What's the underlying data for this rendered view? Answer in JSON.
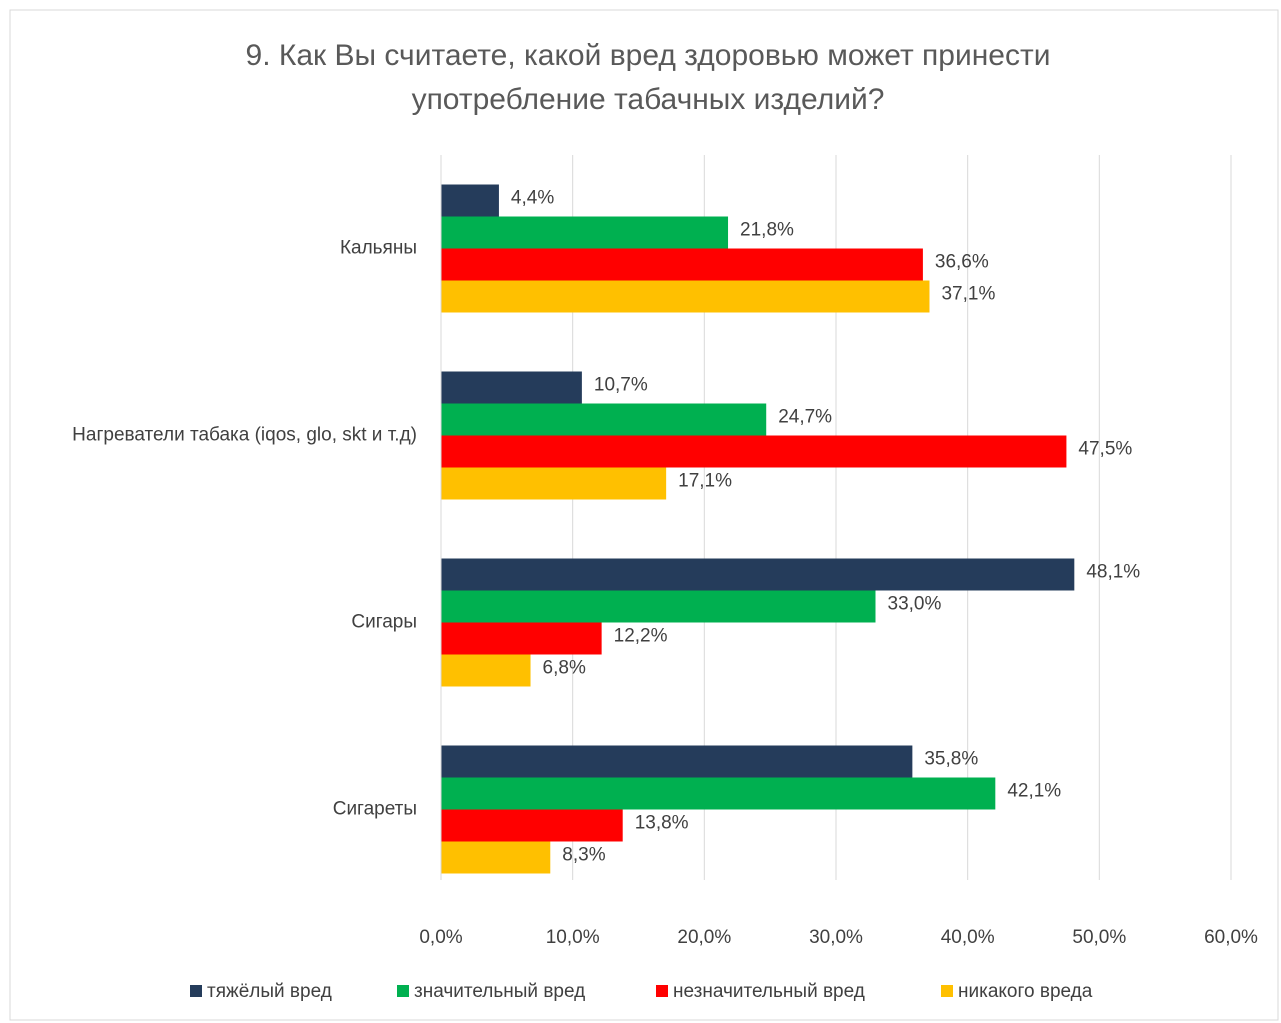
{
  "chart_data": {
    "type": "hbar",
    "title": [
      "9. Как Вы считаете, какой вред здоровью может принести",
      "употребление  табачных изделий?"
    ],
    "categories": [
      "Кальяны",
      "Нагреватели табака (iqos, glo, skt и т.д)",
      "Сигары",
      "Сигареты"
    ],
    "series": [
      {
        "name": "тяжёлый вред",
        "color": "#253c5b",
        "values": [
          4.4,
          10.7,
          48.1,
          35.8
        ],
        "value_labels": [
          "4,4%",
          "10,7%",
          "48,1%",
          "35,8%"
        ]
      },
      {
        "name": "значительный вред",
        "color": "#00b050",
        "values": [
          21.8,
          24.7,
          33.0,
          42.1
        ],
        "value_labels": [
          "21,8%",
          "24,7%",
          "33,0%",
          "42,1%"
        ]
      },
      {
        "name": "незначительный вред",
        "color": "#ff0000",
        "values": [
          36.6,
          47.5,
          12.2,
          13.8
        ],
        "value_labels": [
          "36,6%",
          "47,5%",
          "12,2%",
          "13,8%"
        ]
      },
      {
        "name": "никакого вреда",
        "color": "#ffc000",
        "values": [
          37.1,
          17.1,
          6.8,
          8.3
        ],
        "value_labels": [
          "37,1%",
          "17,1%",
          "6,8%",
          "8,3%"
        ]
      }
    ],
    "xlim": [
      0,
      60
    ],
    "xticks": [
      {
        "value": 0,
        "label": "0,0%"
      },
      {
        "value": 10,
        "label": "10,0%"
      },
      {
        "value": 20,
        "label": "20,0%"
      },
      {
        "value": 30,
        "label": "30,0%"
      },
      {
        "value": 40,
        "label": "40,0%"
      },
      {
        "value": 50,
        "label": "50,0%"
      },
      {
        "value": 60,
        "label": "60,0%"
      }
    ],
    "grid": true,
    "legend": "bottom"
  }
}
